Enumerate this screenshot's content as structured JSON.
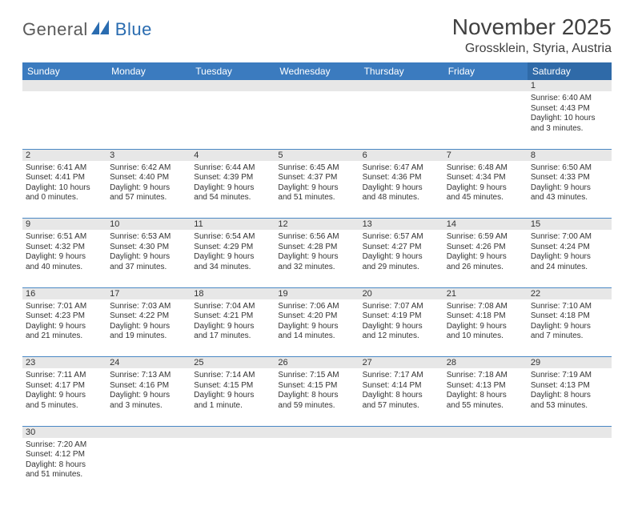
{
  "logo": {
    "part1": "General",
    "part2": "Blue"
  },
  "title": "November 2025",
  "location": "Grossklein, Styria, Austria",
  "colors": {
    "header_bg": "#3b7bbf",
    "header_sat_bg": "#2f6aa8",
    "header_text": "#ffffff",
    "daynum_bg": "#e7e7e7",
    "border": "#4a88c4",
    "logo_gray": "#5a5a5a",
    "logo_blue": "#2a6cb0"
  },
  "day_names": [
    "Sunday",
    "Monday",
    "Tuesday",
    "Wednesday",
    "Thursday",
    "Friday",
    "Saturday"
  ],
  "weeks": [
    [
      null,
      null,
      null,
      null,
      null,
      null,
      {
        "n": "1",
        "sr": "Sunrise: 6:40 AM",
        "ss": "Sunset: 4:43 PM",
        "dl1": "Daylight: 10 hours",
        "dl2": "and 3 minutes."
      }
    ],
    [
      {
        "n": "2",
        "sr": "Sunrise: 6:41 AM",
        "ss": "Sunset: 4:41 PM",
        "dl1": "Daylight: 10 hours",
        "dl2": "and 0 minutes."
      },
      {
        "n": "3",
        "sr": "Sunrise: 6:42 AM",
        "ss": "Sunset: 4:40 PM",
        "dl1": "Daylight: 9 hours",
        "dl2": "and 57 minutes."
      },
      {
        "n": "4",
        "sr": "Sunrise: 6:44 AM",
        "ss": "Sunset: 4:39 PM",
        "dl1": "Daylight: 9 hours",
        "dl2": "and 54 minutes."
      },
      {
        "n": "5",
        "sr": "Sunrise: 6:45 AM",
        "ss": "Sunset: 4:37 PM",
        "dl1": "Daylight: 9 hours",
        "dl2": "and 51 minutes."
      },
      {
        "n": "6",
        "sr": "Sunrise: 6:47 AM",
        "ss": "Sunset: 4:36 PM",
        "dl1": "Daylight: 9 hours",
        "dl2": "and 48 minutes."
      },
      {
        "n": "7",
        "sr": "Sunrise: 6:48 AM",
        "ss": "Sunset: 4:34 PM",
        "dl1": "Daylight: 9 hours",
        "dl2": "and 45 minutes."
      },
      {
        "n": "8",
        "sr": "Sunrise: 6:50 AM",
        "ss": "Sunset: 4:33 PM",
        "dl1": "Daylight: 9 hours",
        "dl2": "and 43 minutes."
      }
    ],
    [
      {
        "n": "9",
        "sr": "Sunrise: 6:51 AM",
        "ss": "Sunset: 4:32 PM",
        "dl1": "Daylight: 9 hours",
        "dl2": "and 40 minutes."
      },
      {
        "n": "10",
        "sr": "Sunrise: 6:53 AM",
        "ss": "Sunset: 4:30 PM",
        "dl1": "Daylight: 9 hours",
        "dl2": "and 37 minutes."
      },
      {
        "n": "11",
        "sr": "Sunrise: 6:54 AM",
        "ss": "Sunset: 4:29 PM",
        "dl1": "Daylight: 9 hours",
        "dl2": "and 34 minutes."
      },
      {
        "n": "12",
        "sr": "Sunrise: 6:56 AM",
        "ss": "Sunset: 4:28 PM",
        "dl1": "Daylight: 9 hours",
        "dl2": "and 32 minutes."
      },
      {
        "n": "13",
        "sr": "Sunrise: 6:57 AM",
        "ss": "Sunset: 4:27 PM",
        "dl1": "Daylight: 9 hours",
        "dl2": "and 29 minutes."
      },
      {
        "n": "14",
        "sr": "Sunrise: 6:59 AM",
        "ss": "Sunset: 4:26 PM",
        "dl1": "Daylight: 9 hours",
        "dl2": "and 26 minutes."
      },
      {
        "n": "15",
        "sr": "Sunrise: 7:00 AM",
        "ss": "Sunset: 4:24 PM",
        "dl1": "Daylight: 9 hours",
        "dl2": "and 24 minutes."
      }
    ],
    [
      {
        "n": "16",
        "sr": "Sunrise: 7:01 AM",
        "ss": "Sunset: 4:23 PM",
        "dl1": "Daylight: 9 hours",
        "dl2": "and 21 minutes."
      },
      {
        "n": "17",
        "sr": "Sunrise: 7:03 AM",
        "ss": "Sunset: 4:22 PM",
        "dl1": "Daylight: 9 hours",
        "dl2": "and 19 minutes."
      },
      {
        "n": "18",
        "sr": "Sunrise: 7:04 AM",
        "ss": "Sunset: 4:21 PM",
        "dl1": "Daylight: 9 hours",
        "dl2": "and 17 minutes."
      },
      {
        "n": "19",
        "sr": "Sunrise: 7:06 AM",
        "ss": "Sunset: 4:20 PM",
        "dl1": "Daylight: 9 hours",
        "dl2": "and 14 minutes."
      },
      {
        "n": "20",
        "sr": "Sunrise: 7:07 AM",
        "ss": "Sunset: 4:19 PM",
        "dl1": "Daylight: 9 hours",
        "dl2": "and 12 minutes."
      },
      {
        "n": "21",
        "sr": "Sunrise: 7:08 AM",
        "ss": "Sunset: 4:18 PM",
        "dl1": "Daylight: 9 hours",
        "dl2": "and 10 minutes."
      },
      {
        "n": "22",
        "sr": "Sunrise: 7:10 AM",
        "ss": "Sunset: 4:18 PM",
        "dl1": "Daylight: 9 hours",
        "dl2": "and 7 minutes."
      }
    ],
    [
      {
        "n": "23",
        "sr": "Sunrise: 7:11 AM",
        "ss": "Sunset: 4:17 PM",
        "dl1": "Daylight: 9 hours",
        "dl2": "and 5 minutes."
      },
      {
        "n": "24",
        "sr": "Sunrise: 7:13 AM",
        "ss": "Sunset: 4:16 PM",
        "dl1": "Daylight: 9 hours",
        "dl2": "and 3 minutes."
      },
      {
        "n": "25",
        "sr": "Sunrise: 7:14 AM",
        "ss": "Sunset: 4:15 PM",
        "dl1": "Daylight: 9 hours",
        "dl2": "and 1 minute."
      },
      {
        "n": "26",
        "sr": "Sunrise: 7:15 AM",
        "ss": "Sunset: 4:15 PM",
        "dl1": "Daylight: 8 hours",
        "dl2": "and 59 minutes."
      },
      {
        "n": "27",
        "sr": "Sunrise: 7:17 AM",
        "ss": "Sunset: 4:14 PM",
        "dl1": "Daylight: 8 hours",
        "dl2": "and 57 minutes."
      },
      {
        "n": "28",
        "sr": "Sunrise: 7:18 AM",
        "ss": "Sunset: 4:13 PM",
        "dl1": "Daylight: 8 hours",
        "dl2": "and 55 minutes."
      },
      {
        "n": "29",
        "sr": "Sunrise: 7:19 AM",
        "ss": "Sunset: 4:13 PM",
        "dl1": "Daylight: 8 hours",
        "dl2": "and 53 minutes."
      }
    ],
    [
      {
        "n": "30",
        "sr": "Sunrise: 7:20 AM",
        "ss": "Sunset: 4:12 PM",
        "dl1": "Daylight: 8 hours",
        "dl2": "and 51 minutes."
      },
      null,
      null,
      null,
      null,
      null,
      null
    ]
  ]
}
